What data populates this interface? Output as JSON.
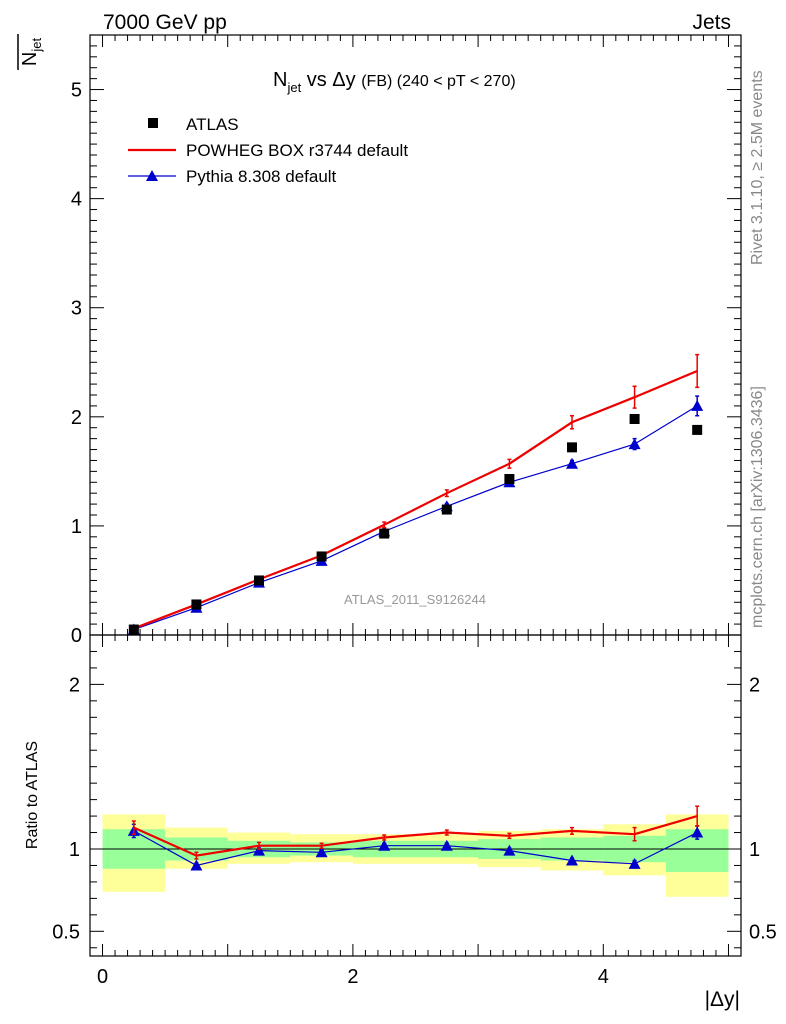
{
  "header": {
    "left": "7000 GeV pp",
    "right": "Jets"
  },
  "side_labels": {
    "events": "Rivet 3.1.10, ≥ 2.5M events",
    "source": "mcplots.cern.ch [arXiv:1306.3436]"
  },
  "watermark": "ATLAS_2011_S9126244",
  "chart_data": [
    {
      "type": "scatter",
      "title": "N_jet vs Δy (FB) (240 < pT < 270)",
      "title_parts": {
        "main": "N",
        "sub": "jet",
        "rest": " vs Δy ",
        "small": "(FB) (240 < pT < 270)"
      },
      "ylabel": "N_jet",
      "xlim": [
        -0.1,
        5.1
      ],
      "ylim": [
        0,
        5.5
      ],
      "yticks": [
        0,
        1,
        2,
        3,
        4,
        5
      ],
      "legend_placement": "top-left",
      "series": [
        {
          "name": "ATLAS",
          "kind": "data",
          "color": "#000000",
          "x": [
            0.25,
            0.75,
            1.25,
            1.75,
            2.25,
            2.75,
            3.25,
            3.75,
            4.25,
            4.75
          ],
          "y": [
            0.05,
            0.28,
            0.5,
            0.72,
            0.93,
            1.15,
            1.43,
            1.72,
            1.98,
            1.88
          ]
        },
        {
          "name": "POWHEG BOX r3744 default",
          "kind": "line",
          "color": "#ee0000",
          "x": [
            0.25,
            0.75,
            1.25,
            1.75,
            2.25,
            2.75,
            3.25,
            3.75,
            4.25,
            4.75
          ],
          "y": [
            0.06,
            0.28,
            0.51,
            0.73,
            1.01,
            1.3,
            1.57,
            1.95,
            2.18,
            2.42
          ],
          "err": [
            0.005,
            0.01,
            0.015,
            0.02,
            0.025,
            0.03,
            0.04,
            0.06,
            0.1,
            0.15
          ]
        },
        {
          "name": "Pythia 8.308 default",
          "kind": "line-triangle",
          "color": "#0000cc",
          "x": [
            0.25,
            0.75,
            1.25,
            1.75,
            2.25,
            2.75,
            3.25,
            3.75,
            4.25,
            4.75
          ],
          "y": [
            0.05,
            0.25,
            0.48,
            0.68,
            0.95,
            1.18,
            1.4,
            1.57,
            1.75,
            2.1
          ],
          "err": [
            0.005,
            0.01,
            0.015,
            0.02,
            0.02,
            0.025,
            0.03,
            0.03,
            0.05,
            0.09
          ]
        }
      ]
    },
    {
      "type": "line",
      "ylabel": "Ratio to ATLAS",
      "xlabel": "|Δy|",
      "xlim": [
        -0.1,
        5.1
      ],
      "ylim": [
        0.35,
        2.3
      ],
      "xticks": [
        0,
        2,
        4
      ],
      "yticks": [
        0.5,
        1,
        2
      ],
      "bands": {
        "x_edges": [
          0,
          0.5,
          1.0,
          1.5,
          2.0,
          2.5,
          3.0,
          3.5,
          4.0,
          4.5,
          5.0
        ],
        "yellow": [
          [
            0.74,
            1.21
          ],
          [
            0.88,
            1.13
          ],
          [
            0.91,
            1.1
          ],
          [
            0.92,
            1.09
          ],
          [
            0.91,
            1.09
          ],
          [
            0.91,
            1.09
          ],
          [
            0.89,
            1.11
          ],
          [
            0.87,
            1.12
          ],
          [
            0.84,
            1.15
          ],
          [
            0.71,
            1.21
          ]
        ],
        "green": [
          [
            0.88,
            1.12
          ],
          [
            0.93,
            1.07
          ],
          [
            0.95,
            1.05
          ],
          [
            0.96,
            1.04
          ],
          [
            0.95,
            1.05
          ],
          [
            0.95,
            1.05
          ],
          [
            0.94,
            1.06
          ],
          [
            0.93,
            1.07
          ],
          [
            0.92,
            1.08
          ],
          [
            0.86,
            1.12
          ]
        ]
      },
      "series": [
        {
          "name": "POWHEG BOX r3744 default",
          "color": "#ee0000",
          "x": [
            0.25,
            0.75,
            1.25,
            1.75,
            2.25,
            2.75,
            3.25,
            3.75,
            4.25,
            4.75
          ],
          "y": [
            1.13,
            0.96,
            1.02,
            1.02,
            1.07,
            1.1,
            1.08,
            1.11,
            1.09,
            1.2
          ],
          "err": [
            0.04,
            0.02,
            0.02,
            0.015,
            0.015,
            0.015,
            0.015,
            0.02,
            0.04,
            0.06
          ]
        },
        {
          "name": "Pythia 8.308 default",
          "color": "#0000cc",
          "x": [
            0.25,
            0.75,
            1.25,
            1.75,
            2.25,
            2.75,
            3.25,
            3.75,
            4.25,
            4.75
          ],
          "y": [
            1.11,
            0.9,
            0.99,
            0.98,
            1.02,
            1.02,
            0.99,
            0.93,
            0.91,
            1.1
          ],
          "err": [
            0.04,
            0.015,
            0.015,
            0.015,
            0.015,
            0.015,
            0.015,
            0.015,
            0.02,
            0.04
          ]
        }
      ]
    }
  ]
}
